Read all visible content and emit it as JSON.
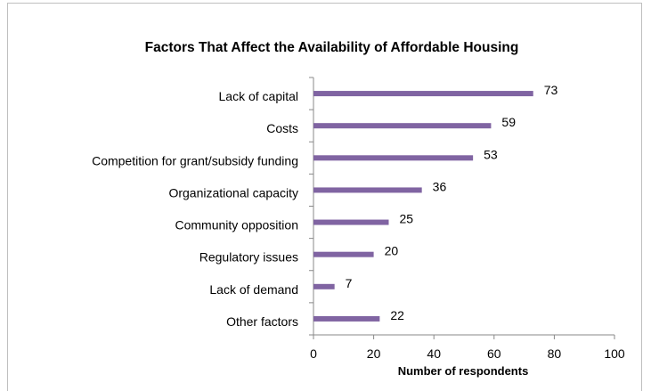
{
  "chart_data": {
    "type": "bar",
    "orientation": "horizontal",
    "title": "Factors That Affect the Availability of Affordable Housing",
    "xlabel": "Number of respondents",
    "ylabel": "",
    "categories": [
      "Lack of capital",
      "Costs",
      "Competition for grant/subsidy funding",
      "Organizational capacity",
      "Community opposition",
      "Regulatory issues",
      "Lack of demand",
      "Other factors"
    ],
    "values": [
      73,
      59,
      53,
      36,
      25,
      20,
      7,
      22
    ],
    "xlim": [
      0,
      100
    ],
    "xticks": [
      0,
      20,
      40,
      60,
      80,
      100
    ],
    "grid": false,
    "legend": "none",
    "bar_color": "#8064a2"
  }
}
